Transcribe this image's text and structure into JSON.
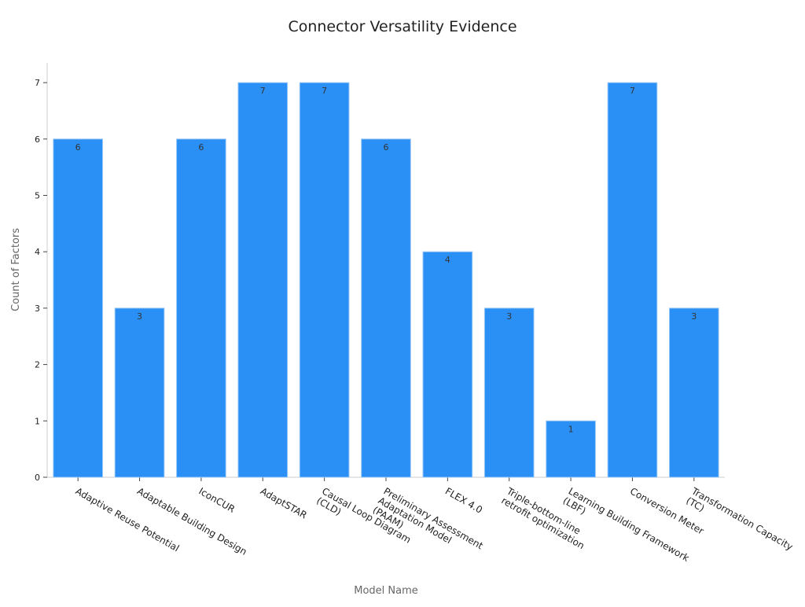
{
  "chart_data": {
    "type": "bar",
    "title": "Connector Versatility Evidence",
    "x_label": "Model Name",
    "y_label": "Count of Factors",
    "categories": [
      "Adaptive Reuse Potential",
      "Adaptable Building Design",
      "IconCUR",
      "AdaptSTAR",
      "Causal Loop Diagram\n(CLD)",
      "Preliminary Assessment\nAdaptation Model\n(PAAM)",
      "FLEX 4.0",
      "Triple-bottom-line\nretrofit optimization",
      "Learning Building Framework\n(LBF)",
      "Conversion Meter",
      "Transformation Capacity\n(TC)"
    ],
    "values": [
      6,
      3,
      6,
      7,
      7,
      6,
      4,
      3,
      1,
      7,
      3
    ],
    "color": "#2b90f6",
    "ylim": [
      0,
      7.35
    ],
    "yticks": [
      0,
      1,
      2,
      3,
      4,
      5,
      6,
      7
    ],
    "grid": false
  }
}
